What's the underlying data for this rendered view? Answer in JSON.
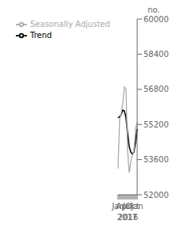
{
  "chart_data": {
    "type": "line",
    "ylabel": "no.",
    "annotations": [
      "2016",
      "2017"
    ],
    "categories": [
      "Jan",
      null,
      null,
      "Apr",
      null,
      null,
      "Jul",
      null,
      null,
      "Oct",
      null,
      null,
      "Jan"
    ],
    "series": [
      {
        "name": "Trend",
        "color": "#000000",
        "values": [
          55500,
          55550,
          55650,
          55850,
          55820,
          55500,
          54800,
          54200,
          53950,
          53850,
          53950,
          54400,
          55000
        ]
      },
      {
        "name": "Seasonally Adjusted",
        "color": "#aaaaaa",
        "values": [
          53200,
          55400,
          55700,
          56200,
          56900,
          56800,
          54000,
          53000,
          53500,
          53800,
          54000,
          55000,
          55300
        ]
      }
    ],
    "ylim": [
      52000,
      60000
    ],
    "yticks": [
      52000,
      53600,
      55200,
      56800,
      58400,
      60000
    ],
    "grid": false,
    "legend": "upper left"
  }
}
